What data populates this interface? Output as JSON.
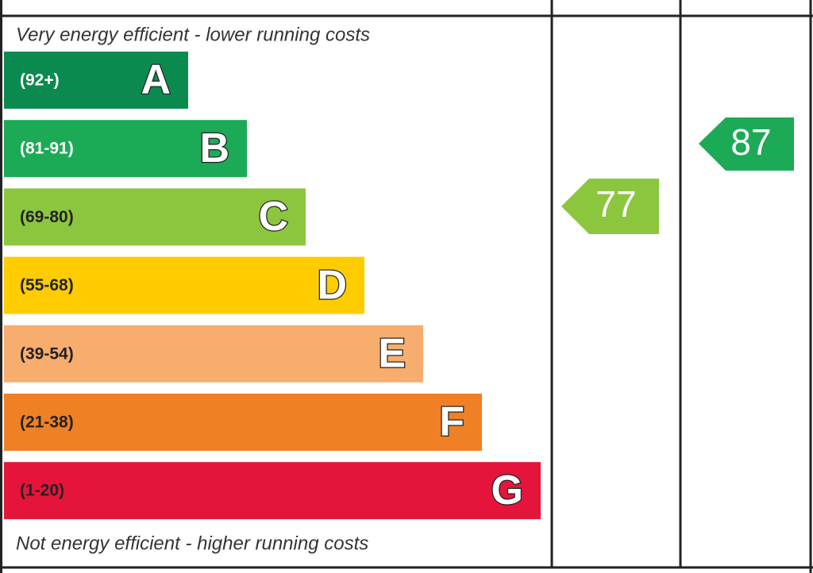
{
  "top_note": "Very energy efficient - lower running costs",
  "bottom_note": "Not energy efficient - higher running costs",
  "bands": [
    {
      "range": "(92+)",
      "letter": "A",
      "color": "#0b8a4f",
      "text_color": "#ffffff"
    },
    {
      "range": "(81-91)",
      "letter": "B",
      "color": "#1daa57",
      "text_color": "#ffffff"
    },
    {
      "range": "(69-80)",
      "letter": "C",
      "color": "#8cc63f",
      "text_color": "#222222"
    },
    {
      "range": "(55-68)",
      "letter": "D",
      "color": "#ffcc00",
      "text_color": "#222222"
    },
    {
      "range": "(39-54)",
      "letter": "E",
      "color": "#f7ad6e",
      "text_color": "#222222"
    },
    {
      "range": "(21-38)",
      "letter": "F",
      "color": "#f08025",
      "text_color": "#222222"
    },
    {
      "range": "(1-20)",
      "letter": "G",
      "color": "#e4143a",
      "text_color": "#222222"
    }
  ],
  "current": {
    "rating": 77,
    "color": "#8cc63f"
  },
  "potential": {
    "rating": 87,
    "color": "#1daa57"
  }
}
